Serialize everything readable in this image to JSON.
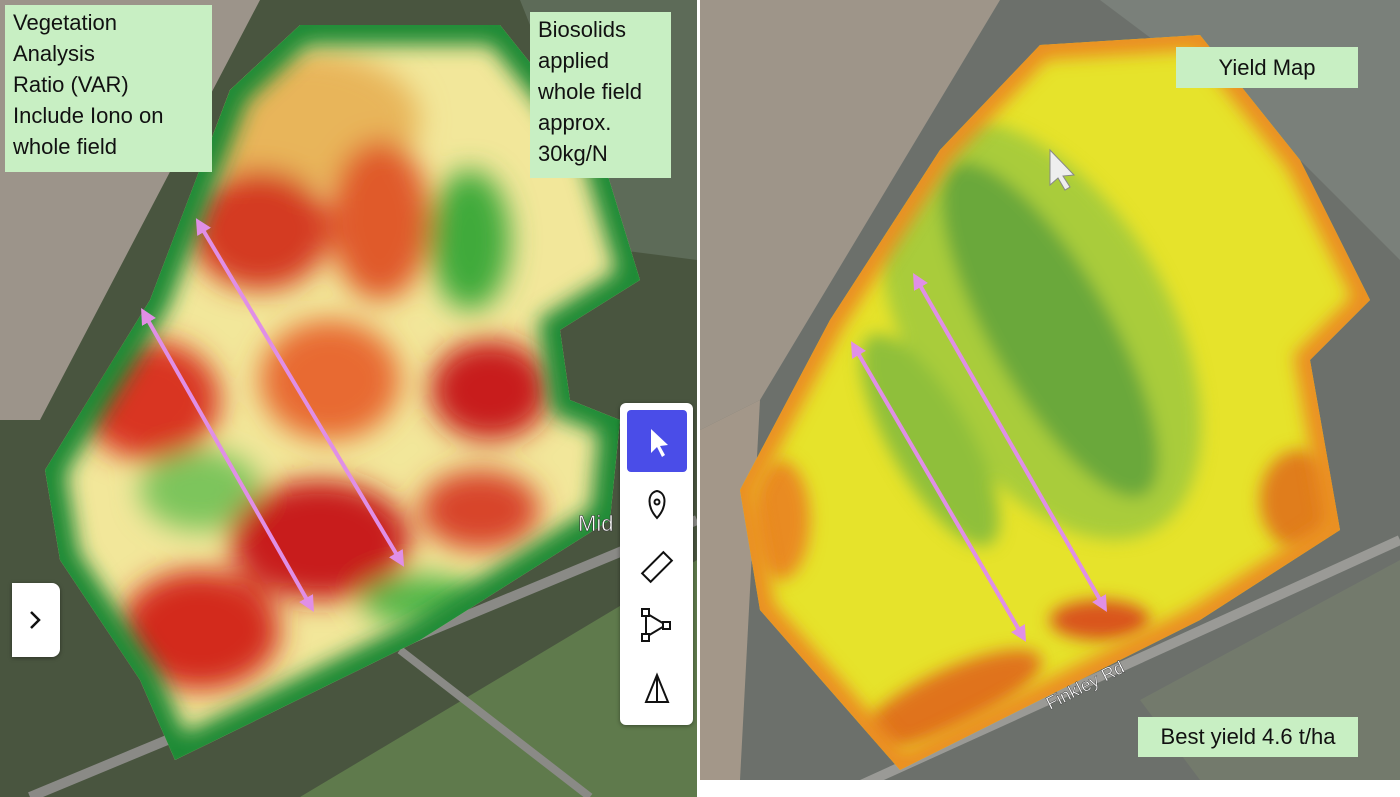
{
  "vegetation_label": [
    "Vegetation",
    "Analysis",
    "Ratio (VAR)",
    "Include Iono on",
    "whole field"
  ],
  "biosolids_label": [
    "Biosolids",
    "applied",
    "whole field",
    "approx.",
    "30kg/N"
  ],
  "left_map_road_label": "Mid",
  "yield_label": "Yield Map",
  "best_yield_label": "Best yield 4.6 t/ha",
  "right_map_road_label": "Finkley Rd"
}
